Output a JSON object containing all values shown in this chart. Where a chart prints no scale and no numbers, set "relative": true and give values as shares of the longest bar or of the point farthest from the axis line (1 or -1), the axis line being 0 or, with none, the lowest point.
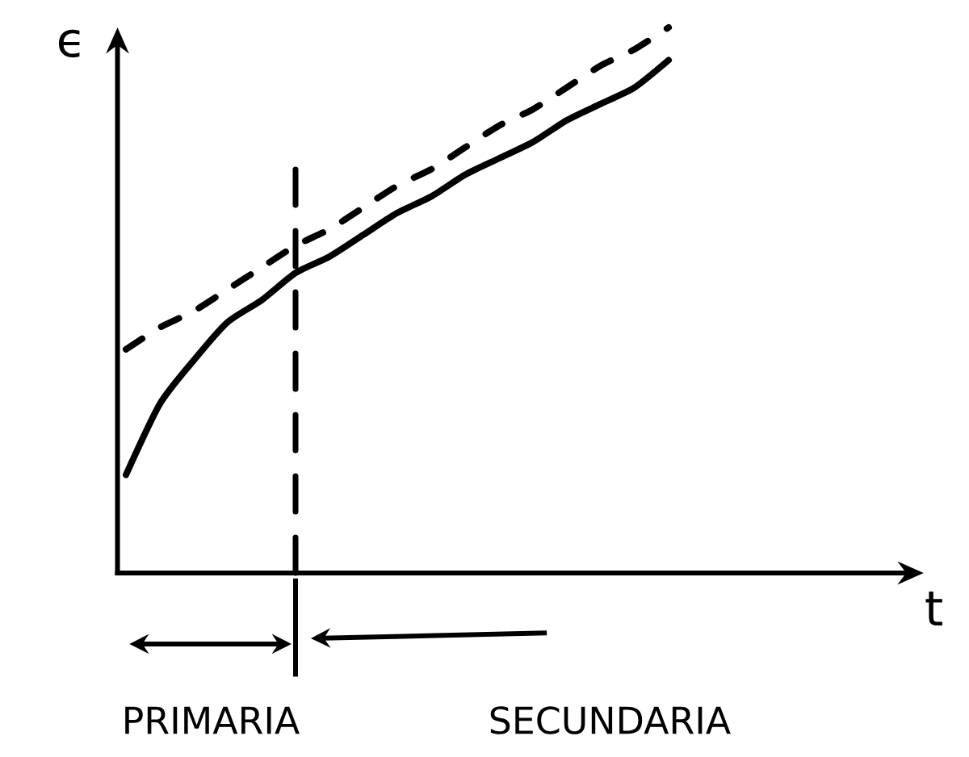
{
  "chart_data": {
    "type": "line",
    "relative": true,
    "xlabel": "t",
    "ylabel": "ϵ",
    "categories": [
      null,
      null,
      null,
      null,
      null,
      null,
      null,
      null,
      null,
      null,
      null,
      null,
      null,
      null,
      null,
      null,
      null
    ],
    "series": [
      {
        "color": "#000000",
        "line_style": "solid",
        "values": [
          0.18,
          0.31,
          0.39,
          0.46,
          0.5,
          0.55,
          0.58,
          0.62,
          0.66,
          0.69,
          0.73,
          0.76,
          0.79,
          0.83,
          0.86,
          0.89,
          0.94
        ]
      },
      {
        "color": "#000000",
        "line_style": "dashed",
        "values": [
          0.41,
          0.45,
          0.48,
          0.52,
          0.56,
          0.6,
          0.63,
          0.67,
          0.71,
          0.74,
          0.78,
          0.82,
          0.85,
          0.89,
          0.93,
          0.96,
          1.0
        ]
      }
    ],
    "annotations": [
      "PRIMARIA",
      "SECUNDARIA"
    ]
  }
}
